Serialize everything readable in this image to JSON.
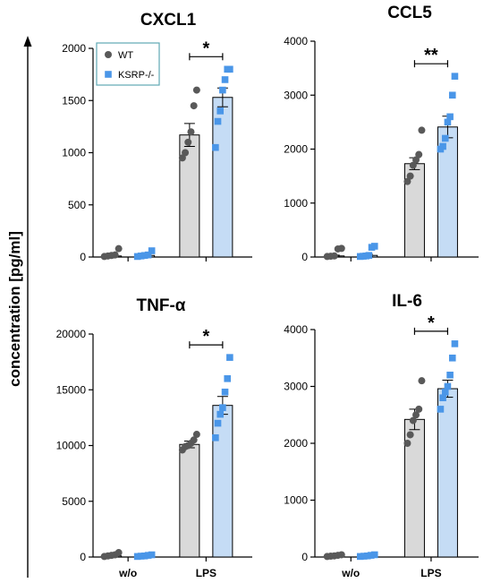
{
  "ylabel": "concentration [pg/ml]",
  "legend": {
    "items": [
      {
        "name": "WT",
        "marker": "circle"
      },
      {
        "name": "KSRP-/-",
        "marker": "square"
      }
    ]
  },
  "colors": {
    "wt_bar": "#d9d9d9",
    "wt_point": "#595959",
    "ko_bar": "#c5dcf5",
    "ko_point": "#4a96e8",
    "legend_border": "#5fa8b4"
  },
  "chart_data": [
    {
      "type": "bar",
      "title": "CXCL1",
      "categories": [
        "w/o",
        "LPS"
      ],
      "ylim": [
        0,
        2000
      ],
      "yticks": [
        0,
        500,
        1000,
        1500,
        2000
      ],
      "significance": "*",
      "series": [
        {
          "name": "WT",
          "values": [
            10,
            1170
          ],
          "sem": [
            8,
            110
          ],
          "points": [
            [
              5,
              10,
              15,
              20,
              80
            ],
            [
              950,
              1000,
              1100,
              1200,
              1450,
              1600
            ]
          ]
        },
        {
          "name": "KSRP-/-",
          "values": [
            15,
            1530
          ],
          "sem": [
            8,
            90
          ],
          "points": [
            [
              5,
              10,
              15,
              20,
              60
            ],
            [
              1050,
              1300,
              1400,
              1600,
              1700,
              1800,
              1800
            ]
          ]
        }
      ]
    },
    {
      "type": "bar",
      "title": "CCL5",
      "categories": [
        "w/o",
        "LPS"
      ],
      "ylim": [
        0,
        4000
      ],
      "yticks": [
        0,
        1000,
        2000,
        3000,
        4000
      ],
      "significance": "**",
      "series": [
        {
          "name": "WT",
          "values": [
            20,
            1730
          ],
          "sem": [
            15,
            110
          ],
          "points": [
            [
              10,
              15,
              20,
              150,
              160
            ],
            [
              1400,
              1500,
              1700,
              1800,
              1900,
              2350
            ]
          ]
        },
        {
          "name": "KSRP-/-",
          "values": [
            30,
            2410
          ],
          "sem": [
            20,
            200
          ],
          "points": [
            [
              10,
              15,
              20,
              30,
              180,
              200
            ],
            [
              2000,
              2050,
              2200,
              2500,
              2600,
              3000,
              3350
            ]
          ]
        }
      ]
    },
    {
      "type": "bar",
      "title": "TNF-α",
      "categories": [
        "w/o",
        "LPS"
      ],
      "ylim": [
        0,
        20000
      ],
      "yticks": [
        0,
        5000,
        10000,
        15000,
        20000
      ],
      "significance": "*",
      "series": [
        {
          "name": "WT",
          "values": [
            100,
            10100
          ],
          "sem": [
            60,
            300
          ],
          "points": [
            [
              50,
              100,
              150,
              200,
              400
            ],
            [
              9600,
              9900,
              10000,
              10200,
              10500,
              11000
            ]
          ]
        },
        {
          "name": "KSRP-/-",
          "values": [
            80,
            13600
          ],
          "sem": [
            40,
            800
          ],
          "points": [
            [
              50,
              80,
              100,
              150,
              200
            ],
            [
              10700,
              12000,
              12800,
              13400,
              14800,
              16000,
              17900
            ]
          ]
        }
      ]
    },
    {
      "type": "bar",
      "title": "IL-6",
      "categories": [
        "w/o",
        "LPS"
      ],
      "ylim": [
        0,
        4000
      ],
      "yticks": [
        0,
        1000,
        2000,
        3000,
        4000
      ],
      "significance": "*",
      "series": [
        {
          "name": "WT",
          "values": [
            20,
            2420
          ],
          "sem": [
            10,
            180
          ],
          "points": [
            [
              10,
              15,
              20,
              30,
              40
            ],
            [
              2000,
              2150,
              2400,
              2500,
              2600,
              3100
            ]
          ]
        },
        {
          "name": "KSRP-/-",
          "values": [
            25,
            2960
          ],
          "sem": [
            10,
            150
          ],
          "points": [
            [
              10,
              15,
              20,
              30,
              40
            ],
            [
              2600,
              2800,
              2900,
              3000,
              3200,
              3500,
              3750
            ]
          ]
        }
      ]
    }
  ]
}
